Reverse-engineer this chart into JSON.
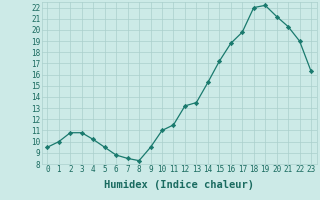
{
  "x": [
    0,
    1,
    2,
    3,
    4,
    5,
    6,
    7,
    8,
    9,
    10,
    11,
    12,
    13,
    14,
    15,
    16,
    17,
    18,
    19,
    20,
    21,
    22,
    23
  ],
  "y": [
    9.5,
    10.0,
    10.8,
    10.8,
    10.2,
    9.5,
    8.8,
    8.5,
    8.3,
    9.5,
    11.0,
    11.5,
    13.2,
    13.5,
    15.3,
    17.2,
    18.8,
    19.8,
    22.0,
    22.2,
    21.2,
    20.3,
    19.0,
    16.3
  ],
  "line_color": "#1a7a6e",
  "marker": "D",
  "marker_size": 2.2,
  "bg_color": "#cceae7",
  "grid_color": "#aacfcc",
  "xlabel": "Humidex (Indice chaleur)",
  "ylim": [
    8,
    22.5
  ],
  "xlim": [
    -0.5,
    23.5
  ],
  "yticks": [
    8,
    9,
    10,
    11,
    12,
    13,
    14,
    15,
    16,
    17,
    18,
    19,
    20,
    21,
    22
  ],
  "xticks": [
    0,
    1,
    2,
    3,
    4,
    5,
    6,
    7,
    8,
    9,
    10,
    11,
    12,
    13,
    14,
    15,
    16,
    17,
    18,
    19,
    20,
    21,
    22,
    23
  ],
  "tick_label_fontsize": 5.5,
  "xlabel_fontsize": 7.5,
  "label_color": "#1a6b60"
}
